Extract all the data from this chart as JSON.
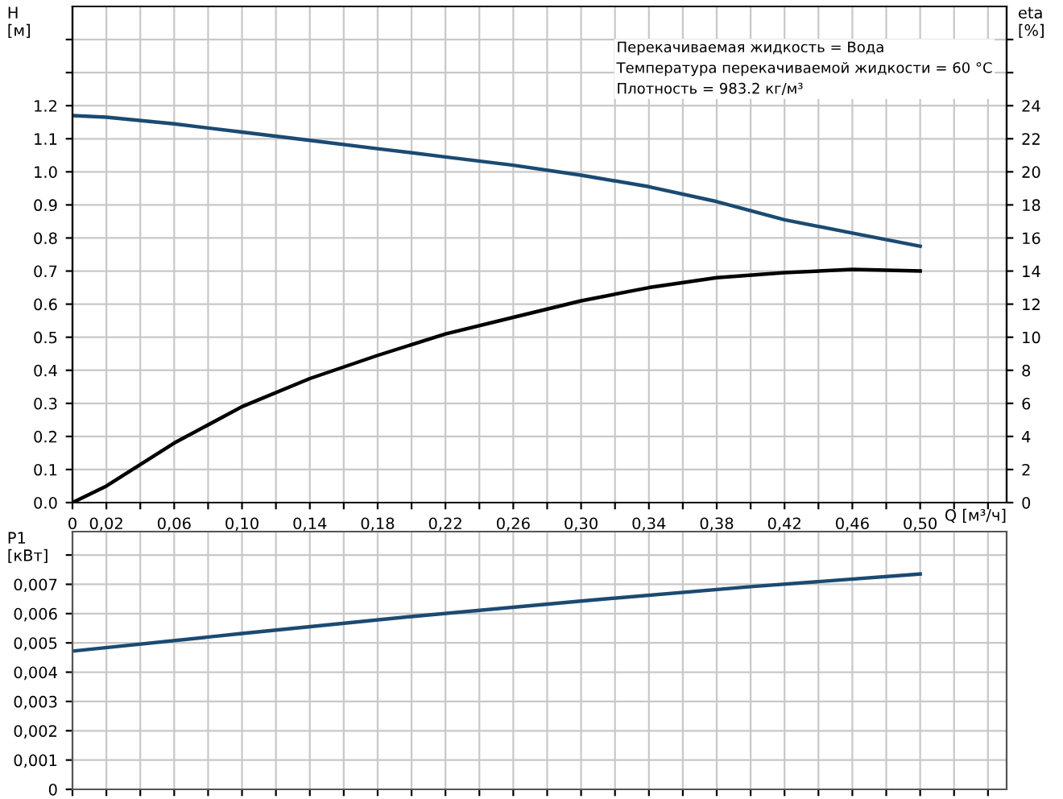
{
  "chart_data": [
    {
      "type": "line",
      "xlabel": "Q [м³/ч]",
      "ylabel": "H\n[м]",
      "y2label": "eta\n[%]",
      "annotations": [
        "Перекачиваемая жидкость = Вода",
        "Температура перекачиваемой жидкости = 60 °C",
        "Плотность = 983.2 кг/м³"
      ],
      "series": [
        {
          "color": "#1b4a72",
          "x": [
            0,
            0.02,
            0.06,
            0.1,
            0.14,
            0.18,
            0.22,
            0.26,
            0.3,
            0.34,
            0.38,
            0.42,
            0.46,
            0.5
          ],
          "values": [
            1.17,
            1.165,
            1.145,
            1.12,
            1.095,
            1.07,
            1.045,
            1.02,
            0.99,
            0.955,
            0.91,
            0.855,
            0.815,
            0.775
          ]
        },
        {
          "color": "#000000",
          "axis": "y2",
          "x": [
            0,
            0.02,
            0.06,
            0.1,
            0.14,
            0.18,
            0.22,
            0.26,
            0.3,
            0.34,
            0.38,
            0.42,
            0.46,
            0.5
          ],
          "values": [
            0,
            1.0,
            3.6,
            5.8,
            7.5,
            8.9,
            10.2,
            11.2,
            12.2,
            13.0,
            13.6,
            13.9,
            14.1,
            14.0
          ]
        }
      ],
      "xlim": [
        0,
        0.551
      ],
      "xticks": [
        {
          "value": 0,
          "label": "0"
        },
        {
          "value": 0.02,
          "label": "0,02"
        },
        {
          "value": 0.04,
          "label": null
        },
        {
          "value": 0.06,
          "label": "0,06"
        },
        {
          "value": 0.08,
          "label": null
        },
        {
          "value": 0.1,
          "label": "0,10"
        },
        {
          "value": 0.12,
          "label": null
        },
        {
          "value": 0.14,
          "label": "0,14"
        },
        {
          "value": 0.16,
          "label": null
        },
        {
          "value": 0.18,
          "label": "0,18"
        },
        {
          "value": 0.2,
          "label": null
        },
        {
          "value": 0.22,
          "label": "0,22"
        },
        {
          "value": 0.24,
          "label": null
        },
        {
          "value": 0.26,
          "label": "0,26"
        },
        {
          "value": 0.28,
          "label": null
        },
        {
          "value": 0.3,
          "label": "0,30"
        },
        {
          "value": 0.32,
          "label": null
        },
        {
          "value": 0.34,
          "label": "0,34"
        },
        {
          "value": 0.36,
          "label": null
        },
        {
          "value": 0.38,
          "label": "0,38"
        },
        {
          "value": 0.4,
          "label": null
        },
        {
          "value": 0.42,
          "label": "0,42"
        },
        {
          "value": 0.44,
          "label": null
        },
        {
          "value": 0.46,
          "label": "0,46"
        },
        {
          "value": 0.48,
          "label": null
        },
        {
          "value": 0.5,
          "label": "0,50"
        },
        {
          "value": 0.52,
          "label": null
        },
        {
          "value": 0.54,
          "label": null
        }
      ],
      "ylim": [
        0,
        1.5
      ],
      "yticks": [
        {
          "value": 0,
          "label": "0.0"
        },
        0.1,
        0.2,
        0.3,
        0.4,
        0.5,
        0.6,
        0.7,
        0.8,
        0.9,
        {
          "value": 1.0,
          "label": "1.0"
        },
        1.1,
        1.2,
        {
          "value": 1.3,
          "label": null
        },
        {
          "value": 1.4,
          "label": null
        }
      ],
      "y2lim": [
        0,
        30
      ],
      "y2ticks": [
        0,
        2,
        4,
        6,
        8,
        10,
        12,
        14,
        16,
        18,
        20,
        22,
        24,
        {
          "value": 26,
          "label": null
        },
        {
          "value": 28,
          "label": null
        }
      ],
      "grid": true,
      "legend": false,
      "marker": "none",
      "line_style": "solid"
    },
    {
      "type": "line",
      "ylabel": "P1\n[кВт]",
      "series": [
        {
          "color": "#1b4a72",
          "x": [
            0,
            0.1,
            0.2,
            0.3,
            0.4,
            0.5
          ],
          "values": [
            0.00472,
            0.00532,
            0.0059,
            0.00643,
            0.00692,
            0.00735
          ]
        }
      ],
      "xlim": [
        0,
        0.551
      ],
      "xticks": [
        0,
        0.02,
        0.04,
        0.06,
        0.08,
        0.1,
        0.12,
        0.14,
        0.16,
        0.18,
        0.2,
        0.22,
        0.24,
        0.26,
        0.28,
        0.3,
        0.32,
        0.34,
        0.36,
        0.38,
        0.4,
        0.42,
        0.44,
        0.46,
        0.48,
        0.5,
        0.52,
        0.54
      ],
      "ylim": [
        0,
        0.0088
      ],
      "yticks": [
        0,
        {
          "value": 0.001,
          "label": "0,001"
        },
        {
          "value": 0.002,
          "label": "0,002"
        },
        {
          "value": 0.003,
          "label": "0,003"
        },
        {
          "value": 0.004,
          "label": "0,004"
        },
        {
          "value": 0.005,
          "label": "0,005"
        },
        {
          "value": 0.006,
          "label": "0,006"
        },
        {
          "value": 0.007,
          "label": "0,007"
        },
        {
          "value": 0.008,
          "label": null
        }
      ],
      "tick_labels": "y",
      "grid": true,
      "legend": false,
      "marker": "none",
      "line_style": "solid"
    }
  ]
}
